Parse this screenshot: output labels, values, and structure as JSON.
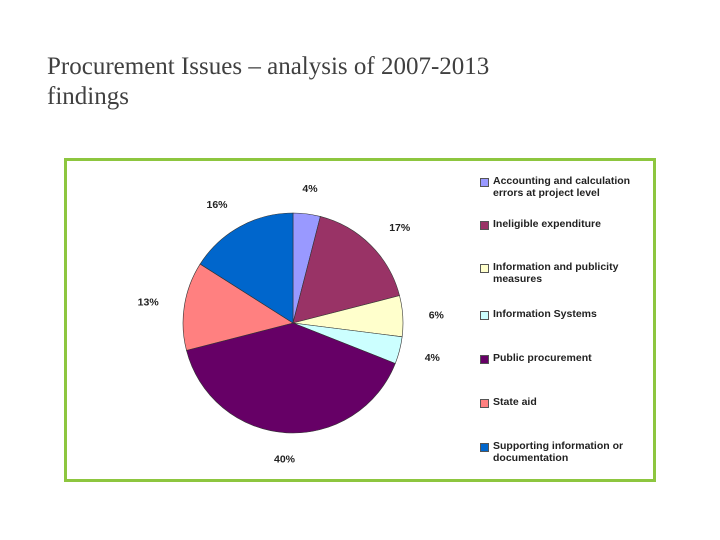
{
  "slide": {
    "title": "Procurement Issues – analysis of 2007-2013 findings"
  },
  "chart_data": {
    "type": "pie",
    "title": "",
    "legend_position": "right",
    "start_angle_deg": 0,
    "direction": "clockwise",
    "slices": [
      {
        "name": "Accounting and calculation errors at project level",
        "value": 4,
        "label": "4%",
        "color": "#9999ff"
      },
      {
        "name": "Ineligible expenditure",
        "value": 17,
        "label": "17%",
        "color": "#993366"
      },
      {
        "name": "Information and publicity measures",
        "value": 6,
        "label": "6%",
        "color": "#ffffcc"
      },
      {
        "name": "Information Systems",
        "value": 4,
        "label": "4%",
        "color": "#ccffff"
      },
      {
        "name": "Public procurement",
        "value": 40,
        "label": "40%",
        "color": "#660066"
      },
      {
        "name": "State aid",
        "value": 13,
        "label": "13%",
        "color": "#ff8080"
      },
      {
        "name": "Supporting information or documentation",
        "value": 16,
        "label": "16%",
        "color": "#0066cc"
      }
    ]
  }
}
